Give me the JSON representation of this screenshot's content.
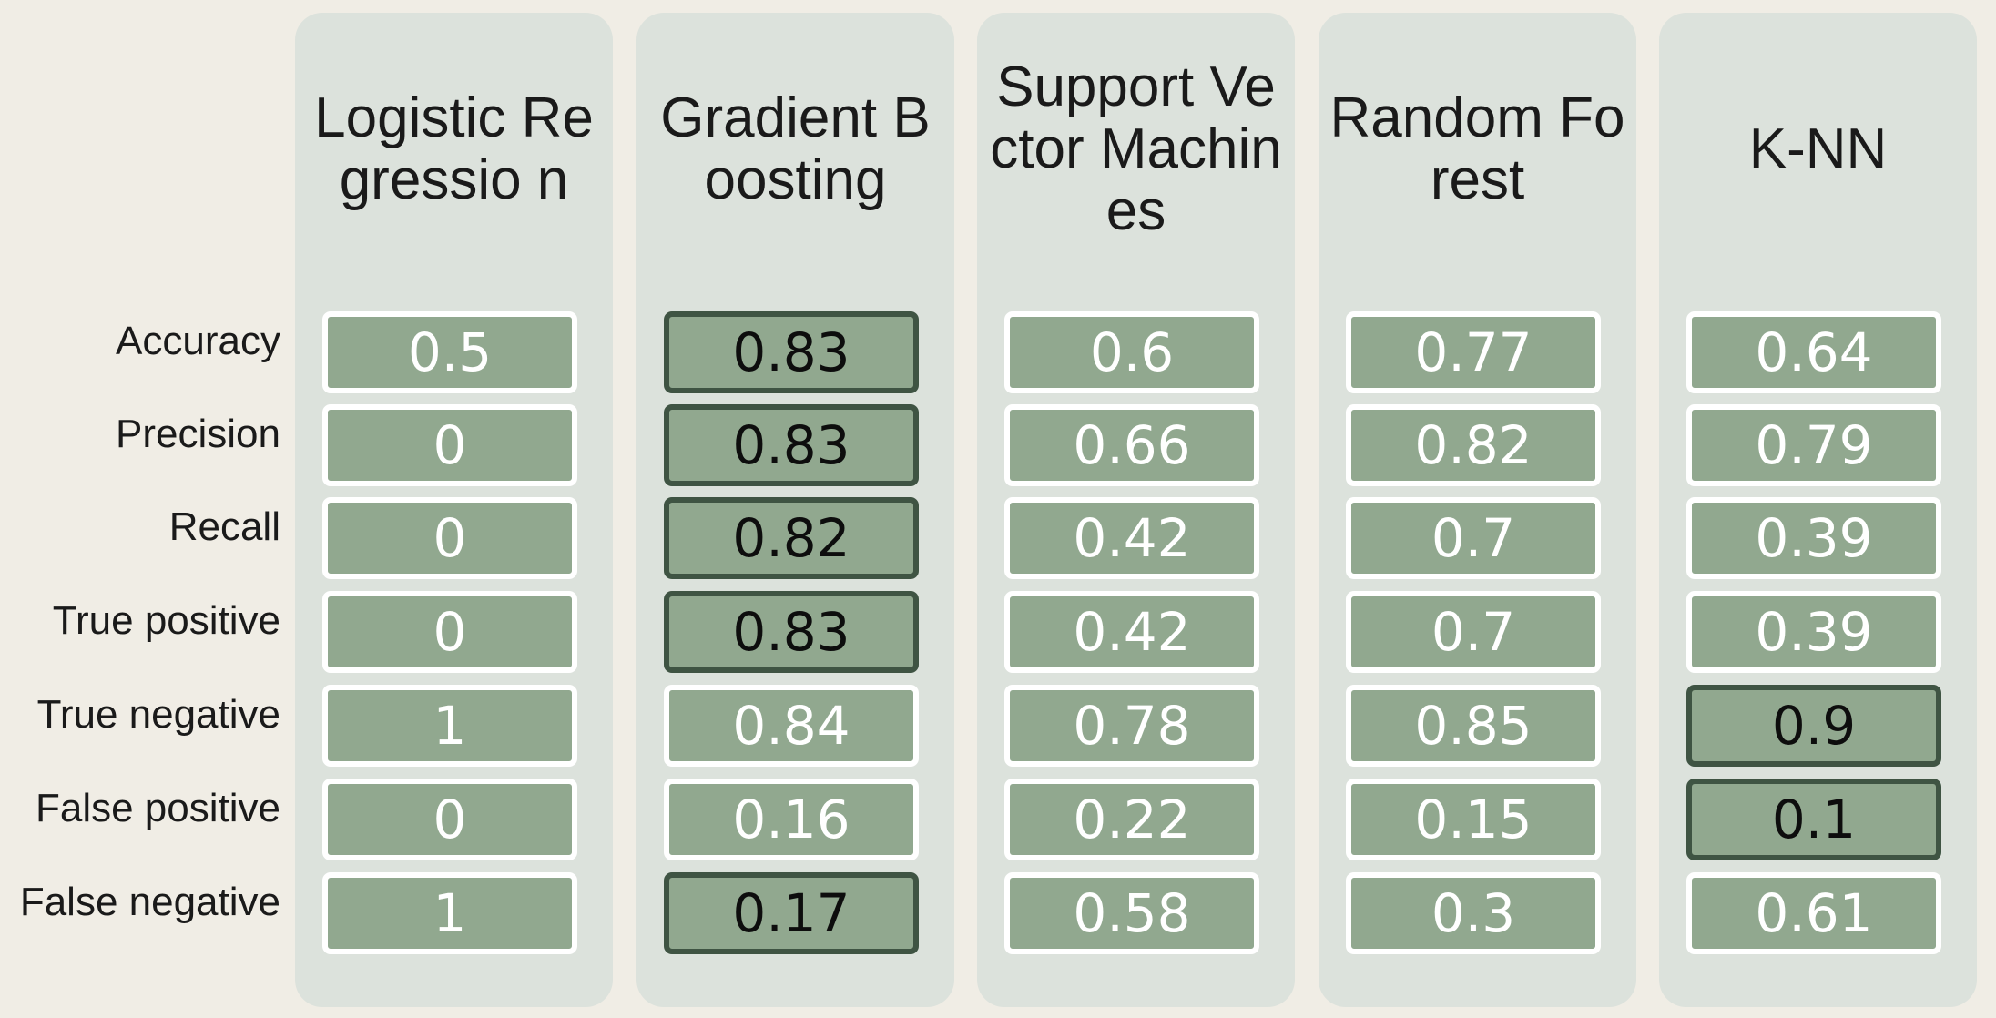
{
  "chart_data": {
    "type": "table",
    "metrics": [
      "Accuracy",
      "Precision",
      "Recall",
      "True positive",
      "True negative",
      "False positive",
      "False negative"
    ],
    "models": [
      {
        "name": "Logistic Regressio n",
        "values": [
          "0.5",
          "0",
          "0",
          "0",
          "1",
          "0",
          "1"
        ],
        "best": [
          false,
          false,
          false,
          false,
          false,
          false,
          false
        ]
      },
      {
        "name": "Gradient Boosting",
        "values": [
          "0.83",
          "0.83",
          "0.82",
          "0.83",
          "0.84",
          "0.16",
          "0.17"
        ],
        "best": [
          true,
          true,
          true,
          true,
          false,
          false,
          true
        ]
      },
      {
        "name": "Support Vector Machines",
        "values": [
          "0.6",
          "0.66",
          "0.42",
          "0.42",
          "0.78",
          "0.22",
          "0.58"
        ],
        "best": [
          false,
          false,
          false,
          false,
          false,
          false,
          false
        ]
      },
      {
        "name": "Random Forest",
        "values": [
          "0.77",
          "0.82",
          "0.7",
          "0.7",
          "0.85",
          "0.15",
          "0.3"
        ],
        "best": [
          false,
          false,
          false,
          false,
          false,
          false,
          false
        ]
      },
      {
        "name": "K-NN",
        "values": [
          "0.64",
          "0.79",
          "0.39",
          "0.39",
          "0.9",
          "0.1",
          "0.61"
        ],
        "best": [
          false,
          false,
          false,
          false,
          true,
          true,
          false
        ]
      }
    ]
  },
  "colors": {
    "background": "#f0ede5",
    "column_panel": "#dce2dc",
    "cell_fill": "#91a88f",
    "cell_border": "#ffffff",
    "best_border": "#3f5443",
    "text_dark": "#1a1a1a",
    "text_light": "#ffffff"
  }
}
